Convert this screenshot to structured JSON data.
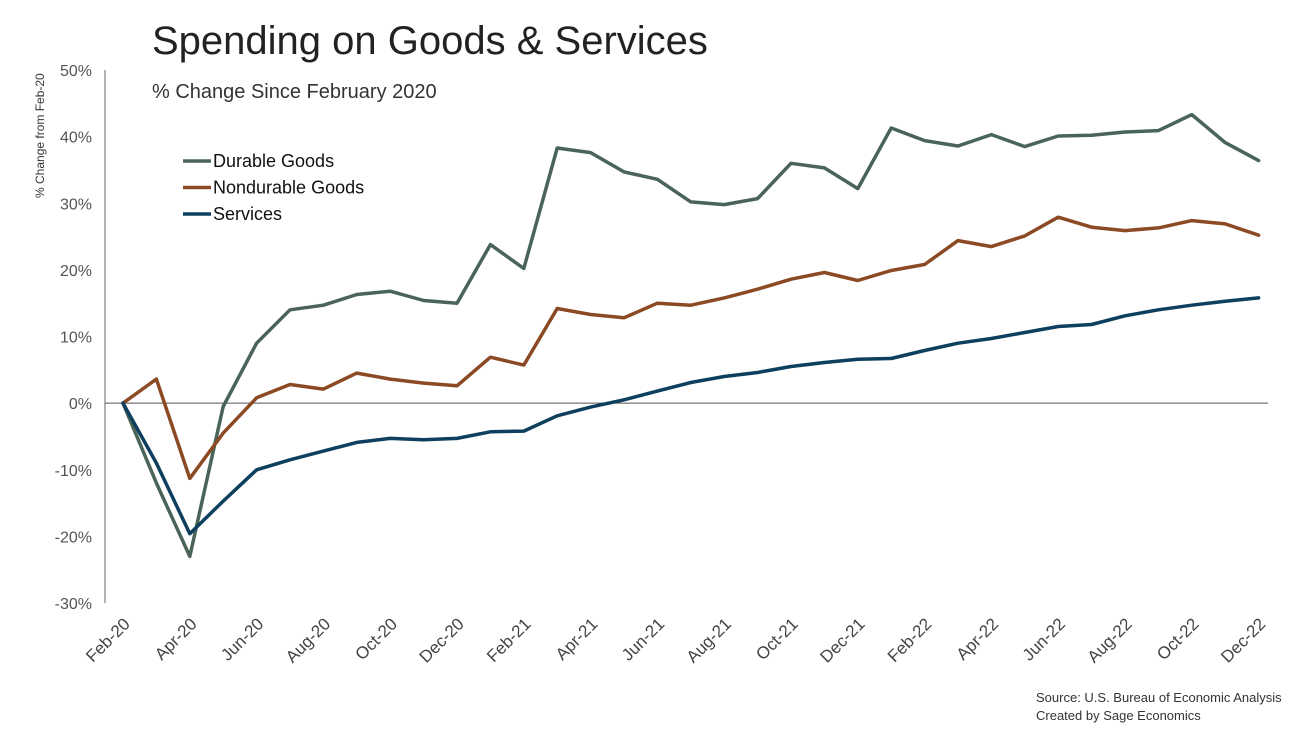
{
  "chart_data": {
    "type": "line",
    "title": "Spending on Goods & Services",
    "subtitle": "% Change Since February 2020",
    "ylabel": "% Change from Feb-20",
    "xlabel": "",
    "ylim": [
      -30,
      50
    ],
    "yticks": [
      -30,
      -20,
      -10,
      0,
      10,
      20,
      30,
      40,
      50
    ],
    "ytick_labels": [
      "-30%",
      "-20%",
      "-10%",
      "0%",
      "10%",
      "20%",
      "30%",
      "40%",
      "50%"
    ],
    "x": [
      "Feb-20",
      "Mar-20",
      "Apr-20",
      "May-20",
      "Jun-20",
      "Jul-20",
      "Aug-20",
      "Sep-20",
      "Oct-20",
      "Nov-20",
      "Dec-20",
      "Jan-21",
      "Feb-21",
      "Mar-21",
      "Apr-21",
      "May-21",
      "Jun-21",
      "Jul-21",
      "Aug-21",
      "Sep-21",
      "Oct-21",
      "Nov-21",
      "Dec-21",
      "Jan-22",
      "Feb-22",
      "Mar-22",
      "Apr-22",
      "May-22",
      "Jun-22",
      "Jul-22",
      "Aug-22",
      "Sep-22",
      "Oct-22",
      "Nov-22",
      "Dec-22"
    ],
    "xtick_labels": [
      "Feb-20",
      "Apr-20",
      "Jun-20",
      "Aug-20",
      "Oct-20",
      "Dec-20",
      "Feb-21",
      "Apr-21",
      "Jun-21",
      "Aug-21",
      "Oct-21",
      "Dec-21",
      "Feb-22",
      "Apr-22",
      "Jun-22",
      "Aug-22",
      "Oct-22",
      "Dec-22"
    ],
    "legend_position": "top-left",
    "grid": false,
    "series": [
      {
        "name": "Durable Goods",
        "color": "#4a6558",
        "values": [
          0,
          -12,
          -23,
          -0.5,
          9,
          14,
          14.7,
          16.3,
          16.8,
          15.4,
          15,
          23.8,
          20.2,
          38.3,
          37.6,
          34.7,
          33.6,
          30.2,
          29.8,
          30.7,
          36,
          35.3,
          32.2,
          41.3,
          39.4,
          38.6,
          40.3,
          38.5,
          40.1,
          40.2,
          40.7,
          40.9,
          43.3,
          39.1,
          36.4
        ]
      },
      {
        "name": "Nondurable Goods",
        "color": "#8b4a24",
        "values": [
          0,
          3.6,
          -11.3,
          -4.5,
          0.8,
          2.8,
          2.1,
          4.5,
          3.6,
          3,
          2.6,
          6.9,
          5.7,
          14.2,
          13.3,
          12.8,
          15,
          14.7,
          15.8,
          17.1,
          18.6,
          19.6,
          18.4,
          19.9,
          20.8,
          24.4,
          23.5,
          25.1,
          27.9,
          26.4,
          25.9,
          26.3,
          27.4,
          26.9,
          25.2
        ]
      },
      {
        "name": "Services",
        "color": "#0e3f5e",
        "values": [
          0,
          -9,
          -19.6,
          -14.7,
          -10,
          -8.5,
          -7.2,
          -5.9,
          -5.3,
          -5.5,
          -5.3,
          -4.3,
          -4.2,
          -1.9,
          -0.6,
          0.5,
          1.8,
          3.1,
          4,
          4.6,
          5.5,
          6.1,
          6.6,
          6.7,
          7.9,
          9,
          9.7,
          10.6,
          11.5,
          11.8,
          13.1,
          14,
          14.7,
          15.3,
          15.8
        ]
      }
    ]
  },
  "source": {
    "line1": "Source: U.S. Bureau of Economic Analysis",
    "line2": "Created by Sage Economics"
  }
}
